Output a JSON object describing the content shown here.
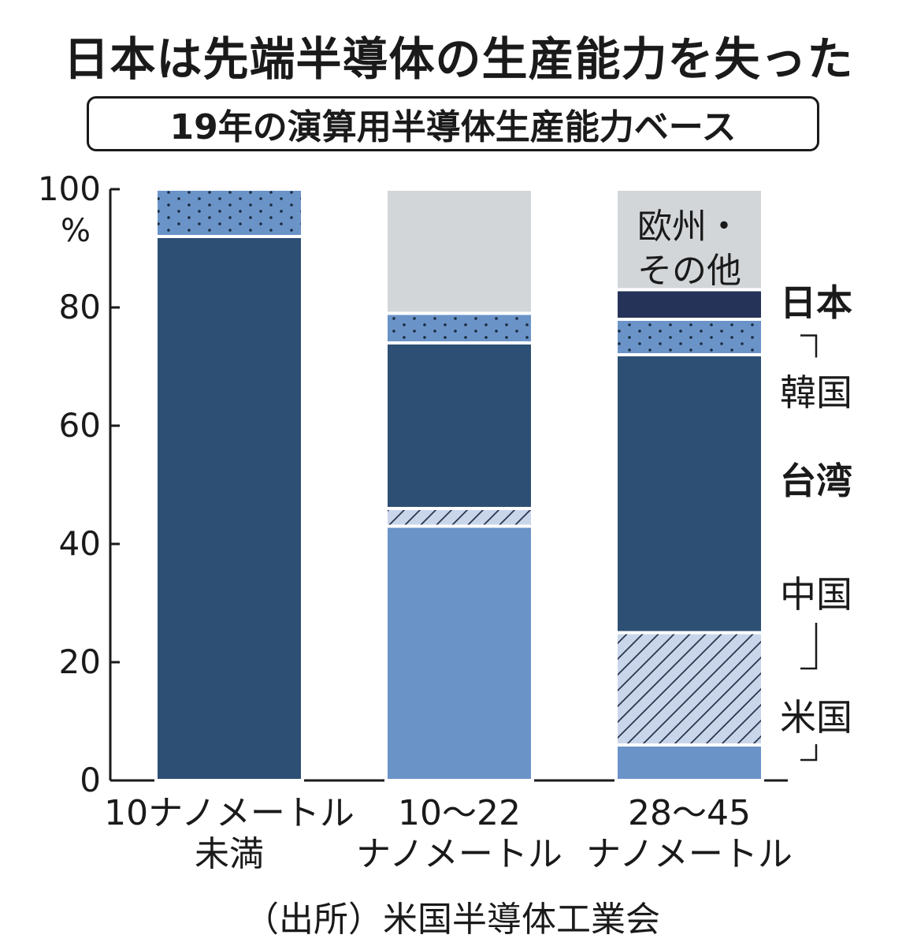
{
  "title": "日本は先端半導体の生産能力を失った",
  "subtitle": "19年の演算用半導体生産能力ベース",
  "source": "（出所）米国半導体工業会",
  "chart_data": {
    "type": "bar",
    "stacked": true,
    "title": "日本は先端半導体の生産能力を失った",
    "subtitle": "19年の演算用半導体生産能力ベース",
    "yunit": "%",
    "ylim": [
      0,
      100
    ],
    "yticks": [
      0,
      20,
      40,
      60,
      80,
      100
    ],
    "categories": [
      [
        "10ナノメートル",
        "未満"
      ],
      [
        "10〜22",
        "ナノメートル"
      ],
      [
        "28〜45",
        "ナノメートル"
      ]
    ],
    "series": [
      {
        "name": "米国",
        "values": [
          0,
          43,
          6
        ],
        "color": "#6a93c8",
        "pattern": "solid"
      },
      {
        "name": "中国",
        "values": [
          0,
          3,
          19
        ],
        "color": "#c9d6ea",
        "pattern": "hatch"
      },
      {
        "name": "台湾",
        "values": [
          92,
          28,
          47
        ],
        "color": "#2e4f74",
        "pattern": "solid"
      },
      {
        "name": "韓国",
        "values": [
          8,
          5,
          6
        ],
        "color": "#6a93c8",
        "pattern": "dots"
      },
      {
        "name": "日本",
        "values": [
          0,
          0,
          5
        ],
        "color": "#263358",
        "pattern": "solid"
      },
      {
        "name": "欧州・その他",
        "values": [
          0,
          21,
          17
        ],
        "color": "#d3d6d9",
        "pattern": "solid"
      }
    ],
    "series_labels_display": {
      "欧州・その他": [
        "欧州・",
        "その他"
      ]
    },
    "legend": "right, inline labels beside third bar"
  },
  "colors": {
    "axis": "#1a1a1a",
    "separator": "#ffffff"
  }
}
